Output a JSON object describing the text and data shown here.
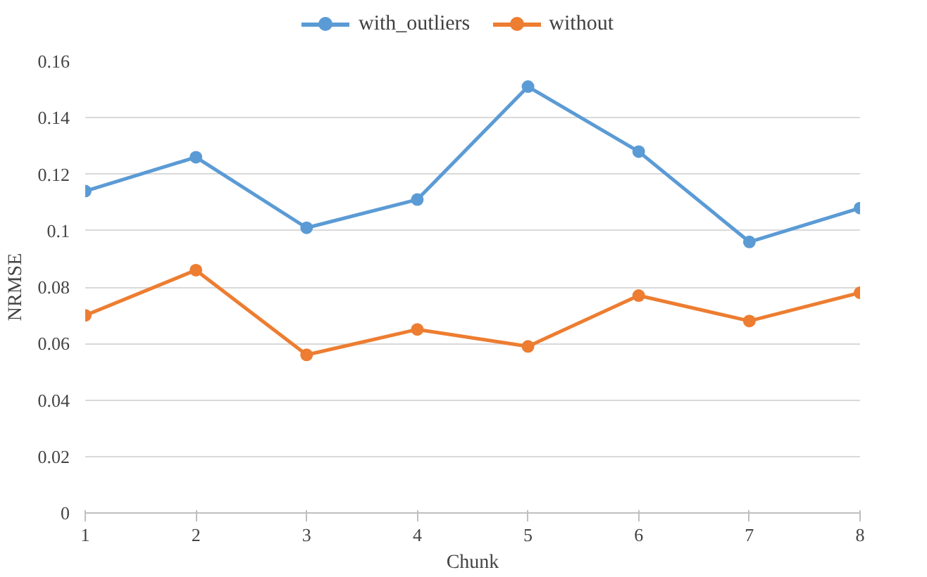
{
  "chart_data": {
    "type": "line",
    "xlabel": "Chunk",
    "ylabel": "NRMSE",
    "x": [
      1,
      2,
      3,
      4,
      5,
      6,
      7,
      8
    ],
    "series": [
      {
        "name": "with_outliers",
        "color": "#5b9bd5",
        "values": [
          0.114,
          0.126,
          0.101,
          0.111,
          0.151,
          0.128,
          0.096,
          0.108
        ]
      },
      {
        "name": "without",
        "color": "#ed7d31",
        "values": [
          0.07,
          0.086,
          0.056,
          0.065,
          0.059,
          0.077,
          0.068,
          0.078
        ]
      }
    ],
    "xlim": [
      1,
      8
    ],
    "xticks": [
      1,
      2,
      3,
      4,
      5,
      6,
      7,
      8
    ],
    "ylim": [
      0,
      0.16
    ],
    "yticks": [
      0,
      {
        "value": 0.02,
        "label": "0.02"
      },
      {
        "value": 0.04,
        "label": "0.04"
      },
      {
        "value": 0.06,
        "label": "0.06"
      },
      {
        "value": 0.08,
        "label": "0.08"
      },
      {
        "value": 0.1,
        "label": "0.1"
      },
      {
        "value": 0.12,
        "label": "0.12"
      },
      {
        "value": 0.14,
        "label": "0.14"
      },
      {
        "value": 0.16,
        "label": "0.16"
      }
    ],
    "grid": "y",
    "legend": "top",
    "marker": "circle",
    "line_style": "solid"
  }
}
